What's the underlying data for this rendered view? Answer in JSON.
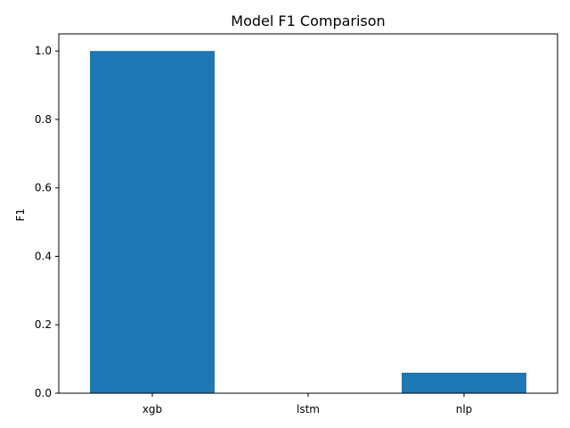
{
  "chart_data": {
    "type": "bar",
    "title": "Model F1 Comparison",
    "xlabel": "",
    "ylabel": "F1",
    "categories": [
      "xgb",
      "lstm",
      "nlp"
    ],
    "values": [
      1.0,
      0.0,
      0.06
    ],
    "ylim": [
      0,
      1.05
    ],
    "yticks": [
      "0.0",
      "0.2",
      "0.4",
      "0.6",
      "0.8",
      "1.0"
    ],
    "grid": false,
    "legend": "none",
    "bar_color": "#1f77b4"
  }
}
